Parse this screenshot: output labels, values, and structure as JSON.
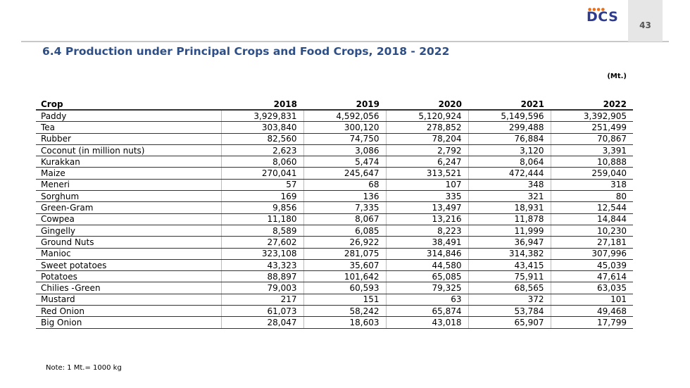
{
  "header": {
    "page_number": "43",
    "logo_text": "DCS"
  },
  "title": "6.4 Production under Principal Crops and Food Crops, 2018 - 2022",
  "unit": "(Mt.)",
  "table": {
    "columns": [
      "Crop",
      "2018",
      "2019",
      "2020",
      "2021",
      "2022"
    ],
    "rows": [
      [
        "Paddy",
        "3,929,831",
        "4,592,056",
        "5,120,924",
        "5,149,596",
        "3,392,905"
      ],
      [
        "Tea",
        "303,840",
        "300,120",
        "278,852",
        "299,488",
        "251,499"
      ],
      [
        "Rubber",
        "82,560",
        "74,750",
        "78,204",
        "76,884",
        "70,867"
      ],
      [
        "Coconut (in million nuts)",
        "2,623",
        "3,086",
        "2,792",
        "3,120",
        "3,391"
      ],
      [
        "Kurakkan",
        "8,060",
        "5,474",
        "6,247",
        "8,064",
        "10,888"
      ],
      [
        "Maize",
        "270,041",
        "245,647",
        "313,521",
        "472,444",
        "259,040"
      ],
      [
        "Meneri",
        "57",
        "68",
        "107",
        "348",
        "318"
      ],
      [
        "Sorghum",
        "169",
        "136",
        "335",
        "321",
        "80"
      ],
      [
        "Green-Gram",
        "9,856",
        "7,335",
        "13,497",
        "18,931",
        "12,544"
      ],
      [
        "Cowpea",
        "11,180",
        "8,067",
        "13,216",
        "11,878",
        "14,844"
      ],
      [
        "Gingelly",
        "8,589",
        "6,085",
        "8,223",
        "11,999",
        "10,230"
      ],
      [
        "Ground Nuts",
        "27,602",
        "26,922",
        "38,491",
        "36,947",
        "27,181"
      ],
      [
        "Manioc",
        "323,108",
        "281,075",
        "314,846",
        "314,382",
        "307,996"
      ],
      [
        "Sweet potatoes",
        "43,323",
        "35,607",
        "44,580",
        "43,415",
        "45,039"
      ],
      [
        "Potatoes",
        "88,897",
        "101,642",
        "65,085",
        "75,911",
        "47,614"
      ],
      [
        "Chilies -Green",
        "79,003",
        "60,593",
        "79,325",
        "68,565",
        "63,035"
      ],
      [
        "Mustard",
        "217",
        "151",
        "63",
        "372",
        "101"
      ],
      [
        "Red Onion",
        "61,073",
        "58,242",
        "65,874",
        "53,784",
        "49,468"
      ],
      [
        "Big Onion",
        "28,047",
        "18,603",
        "43,018",
        "65,907",
        "17,799"
      ]
    ]
  },
  "note": "Note: 1 Mt.= 1000 kg"
}
